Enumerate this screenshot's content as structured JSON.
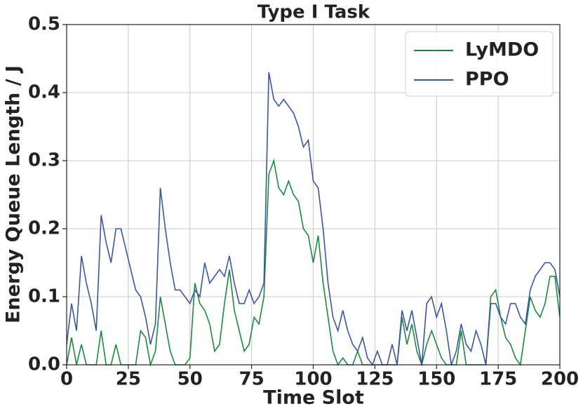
{
  "chart_data": {
    "type": "line",
    "title": "Type I Task",
    "x_label": "Time Slot",
    "y_label": "Energy Queue Length / J",
    "x": [
      0,
      2,
      4,
      6,
      8,
      10,
      12,
      14,
      16,
      18,
      20,
      22,
      24,
      26,
      28,
      30,
      32,
      34,
      36,
      38,
      40,
      42,
      44,
      46,
      48,
      50,
      52,
      54,
      56,
      58,
      60,
      62,
      64,
      66,
      68,
      70,
      72,
      74,
      76,
      78,
      80,
      82,
      84,
      86,
      88,
      90,
      92,
      94,
      96,
      98,
      100,
      102,
      104,
      106,
      108,
      110,
      112,
      114,
      116,
      118,
      120,
      122,
      124,
      126,
      128,
      130,
      132,
      134,
      136,
      138,
      140,
      142,
      144,
      146,
      148,
      150,
      152,
      154,
      156,
      158,
      160,
      162,
      164,
      166,
      168,
      170,
      172,
      174,
      176,
      178,
      180,
      182,
      184,
      186,
      188,
      190,
      192,
      194,
      196,
      198,
      200
    ],
    "series": [
      {
        "name": "LyMDO",
        "color": "#1a8a3e",
        "values": [
          0,
          0.04,
          0,
          0.03,
          0,
          0,
          0,
          0.05,
          0,
          0,
          0.03,
          0,
          0,
          0,
          0,
          0.05,
          0.04,
          0,
          0.02,
          0.1,
          0.06,
          0.02,
          0,
          0,
          0,
          0.01,
          0.12,
          0.09,
          0.08,
          0.06,
          0.02,
          0.03,
          0.09,
          0.14,
          0.08,
          0.05,
          0.02,
          0.03,
          0.07,
          0.06,
          0.1,
          0.28,
          0.3,
          0.26,
          0.25,
          0.27,
          0.25,
          0.24,
          0.2,
          0.19,
          0.15,
          0.19,
          0.12,
          0.07,
          0.02,
          0,
          0.01,
          0,
          0,
          0.02,
          0,
          0,
          0,
          0,
          0,
          0,
          0,
          0,
          0.07,
          0.03,
          0.06,
          0.02,
          0,
          0.03,
          0.05,
          0.03,
          0.01,
          0,
          0,
          0,
          0.05,
          0,
          0,
          0,
          0,
          0,
          0.1,
          0.11,
          0.07,
          0.04,
          0.03,
          0.01,
          0,
          0.05,
          0.1,
          0.08,
          0.07,
          0.09,
          0.13,
          0.13,
          0.07
        ]
      },
      {
        "name": "PPO",
        "color": "#3a56a3",
        "values": [
          0.03,
          0.09,
          0.05,
          0.16,
          0.12,
          0.09,
          0.05,
          0.22,
          0.18,
          0.15,
          0.2,
          0.2,
          0.17,
          0.14,
          0.11,
          0.1,
          0.07,
          0.03,
          0.06,
          0.26,
          0.2,
          0.15,
          0.11,
          0.11,
          0.1,
          0.09,
          0.11,
          0.1,
          0.15,
          0.12,
          0.13,
          0.14,
          0.13,
          0.16,
          0.12,
          0.09,
          0.09,
          0.11,
          0.09,
          0.1,
          0.12,
          0.43,
          0.39,
          0.38,
          0.39,
          0.38,
          0.37,
          0.35,
          0.32,
          0.33,
          0.27,
          0.26,
          0.2,
          0.12,
          0.07,
          0.05,
          0.08,
          0.05,
          0.03,
          0.02,
          0.04,
          0.01,
          0,
          0.02,
          0,
          0,
          0.03,
          0,
          0.08,
          0.05,
          0.08,
          0.04,
          0,
          0.09,
          0.1,
          0.07,
          0.09,
          0.05,
          0,
          0.02,
          0.06,
          0.03,
          0.02,
          0.05,
          0.03,
          0,
          0.09,
          0.09,
          0.07,
          0.06,
          0.09,
          0.09,
          0.07,
          0.06,
          0.11,
          0.13,
          0.14,
          0.15,
          0.15,
          0.14,
          0.1
        ]
      }
    ],
    "xlim": [
      0,
      200
    ],
    "xticks": [
      0,
      25,
      50,
      75,
      100,
      125,
      150,
      175,
      200
    ],
    "ylim": [
      0,
      0.5
    ],
    "yticks": [
      {
        "value": 0,
        "label": "0.0"
      },
      0.1,
      0.2,
      0.3,
      0.4,
      0.5
    ],
    "grid": true,
    "legend": "upper right"
  }
}
